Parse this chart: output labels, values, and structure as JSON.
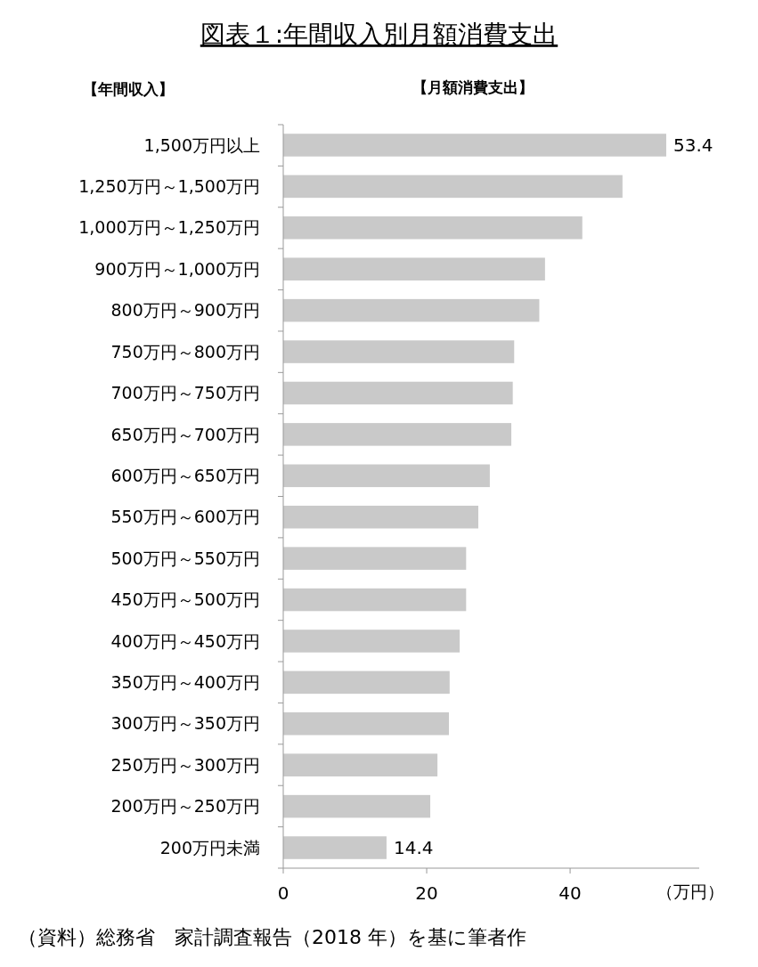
{
  "chart_data": {
    "type": "bar",
    "orientation": "horizontal",
    "title": "図表１:年間収入別月額消費支出",
    "ylabel": "【年間収入】",
    "xlabel": "（万円）",
    "annotations": [
      "【月額消費支出】",
      "（資料）総務省　家計調査報告（2018 年）を基に筆者作"
    ],
    "categories": [
      "1,500万円以上",
      "1,250万円～1,500万円",
      "1,000万円～1,250万円",
      "900万円～1,000万円",
      "800万円～900万円",
      "750万円～800万円",
      "700万円～750万円",
      "650万円～700万円",
      "600万円～650万円",
      "550万円～600万円",
      "500万円～550万円",
      "450万円～500万円",
      "400万円～450万円",
      "350万円～400万円",
      "300万円～350万円",
      "250万円～300万円",
      "200万円～250万円",
      "200万円未満"
    ],
    "values": [
      53.4,
      47.3,
      41.7,
      36.5,
      35.7,
      32.2,
      32.0,
      31.8,
      28.8,
      27.2,
      25.5,
      25.5,
      24.6,
      23.2,
      23.1,
      21.5,
      20.5,
      14.4
    ],
    "value_labels": [
      "53.4",
      null,
      null,
      null,
      null,
      null,
      null,
      null,
      null,
      null,
      null,
      null,
      null,
      null,
      null,
      null,
      null,
      "14.4"
    ],
    "color": "#c9c9c9",
    "xlim": [
      0,
      58
    ],
    "xticks": [
      0,
      20,
      40
    ],
    "grid": false
  }
}
